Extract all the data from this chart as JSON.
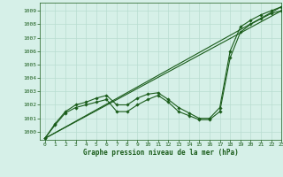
{
  "title": "Graphe pression niveau de la mer (hPa)",
  "bg_color": "#d6f0e8",
  "grid_color": "#b8ddd0",
  "line_color": "#1a5c1a",
  "xlim": [
    -0.5,
    23
  ],
  "ylim": [
    999.4,
    1009.6
  ],
  "xticks": [
    0,
    1,
    2,
    3,
    4,
    5,
    6,
    7,
    8,
    9,
    10,
    11,
    12,
    13,
    14,
    15,
    16,
    17,
    18,
    19,
    20,
    21,
    22,
    23
  ],
  "yticks": [
    1000,
    1001,
    1002,
    1003,
    1004,
    1005,
    1006,
    1007,
    1008,
    1009
  ],
  "series1_x": [
    0,
    1,
    2,
    3,
    4,
    5,
    6,
    7,
    8,
    9,
    10,
    11,
    12,
    13,
    14,
    15,
    16,
    17,
    18,
    19,
    20,
    21,
    22,
    23
  ],
  "series1_y": [
    999.5,
    1000.6,
    1001.5,
    1002.0,
    1002.2,
    1002.5,
    1002.7,
    1002.0,
    1002.0,
    1002.5,
    1002.8,
    1002.9,
    1002.4,
    1001.8,
    1001.4,
    1001.0,
    1001.0,
    1001.8,
    1006.0,
    1007.8,
    1008.3,
    1008.7,
    1009.0,
    1009.3
  ],
  "series2_x": [
    0,
    1,
    2,
    3,
    4,
    5,
    6,
    7,
    8,
    9,
    10,
    11,
    12,
    13,
    14,
    15,
    16,
    17,
    18,
    19,
    20,
    21,
    22,
    23
  ],
  "series2_y": [
    999.5,
    1000.5,
    1001.4,
    1001.8,
    1002.0,
    1002.2,
    1002.4,
    1001.5,
    1001.5,
    1002.0,
    1002.4,
    1002.7,
    1002.2,
    1001.5,
    1001.2,
    1000.9,
    1000.9,
    1001.5,
    1005.5,
    1007.4,
    1008.0,
    1008.4,
    1008.8,
    1009.0
  ],
  "line1_x": [
    0,
    23
  ],
  "line1_y": [
    999.5,
    1009.3
  ],
  "line2_x": [
    0,
    23
  ],
  "line2_y": [
    999.5,
    1009.0
  ]
}
